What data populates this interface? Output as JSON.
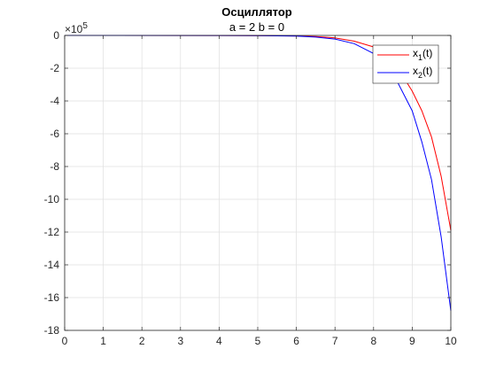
{
  "chart_data": {
    "type": "line",
    "title": "Осциллятор",
    "subtitle": "a = 2 b = 0",
    "xlabel": "",
    "ylabel": "",
    "y_exponent_label": "×10",
    "y_exponent_power": "5",
    "xlim": [
      0,
      10
    ],
    "ylim": [
      -18,
      0
    ],
    "grid": true,
    "legend_position": "top-right",
    "x_ticks": [
      0,
      1,
      2,
      3,
      4,
      5,
      6,
      7,
      8,
      9,
      10
    ],
    "y_ticks": [
      0,
      -2,
      -4,
      -6,
      -8,
      -10,
      -12,
      -14,
      -16,
      -18
    ],
    "x": [
      0,
      5,
      6,
      6.5,
      7,
      7.5,
      8,
      8.5,
      9,
      9.25,
      9.5,
      9.75,
      10
    ],
    "series": [
      {
        "name_main": "x",
        "name_sub": "1",
        "name_tail": "(t)",
        "color": "#ff0000",
        "values": [
          0,
          -0.01,
          -0.03,
          -0.07,
          -0.15,
          -0.35,
          -0.7,
          -1.5,
          -3.4,
          -4.6,
          -6.2,
          -8.6,
          -11.9
        ]
      },
      {
        "name_main": "x",
        "name_sub": "2",
        "name_tail": "(t)",
        "color": "#0000ff",
        "values": [
          0,
          -0.01,
          -0.04,
          -0.1,
          -0.22,
          -0.5,
          -1.1,
          -2.3,
          -4.6,
          -6.5,
          -8.8,
          -12.3,
          -16.8
        ]
      }
    ]
  }
}
